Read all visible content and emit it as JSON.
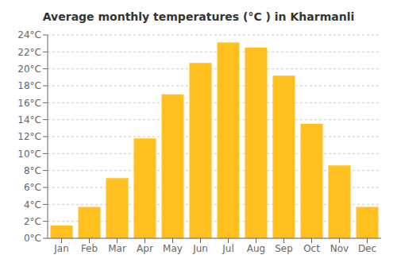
{
  "chart_data": {
    "type": "bar",
    "title": "Average monthly temperatures (°C ) in Kharmanli",
    "categories": [
      "Jan",
      "Feb",
      "Mar",
      "Apr",
      "May",
      "Jun",
      "Jul",
      "Aug",
      "Sep",
      "Oct",
      "Nov",
      "Dec"
    ],
    "values": [
      1.5,
      3.7,
      7.1,
      11.8,
      17.0,
      20.7,
      23.1,
      22.5,
      19.2,
      13.5,
      8.6,
      3.7
    ],
    "color": "#FFC020",
    "ylim": [
      0,
      24
    ],
    "yticks": [
      {
        "value": 0,
        "label": "0°C"
      },
      {
        "value": 2,
        "label": "2°C"
      },
      {
        "value": 4,
        "label": "4°C"
      },
      {
        "value": 6,
        "label": "6°C"
      },
      {
        "value": 8,
        "label": "8°C"
      },
      {
        "value": 10,
        "label": "10°C"
      },
      {
        "value": 12,
        "label": "12°C"
      },
      {
        "value": 14,
        "label": "14°C"
      },
      {
        "value": 16,
        "label": "16°C"
      },
      {
        "value": 18,
        "label": "18°C"
      },
      {
        "value": 20,
        "label": "20°C"
      },
      {
        "value": 22,
        "label": "22°C"
      },
      {
        "value": 24,
        "label": "24°C"
      }
    ],
    "grid": true
  }
}
